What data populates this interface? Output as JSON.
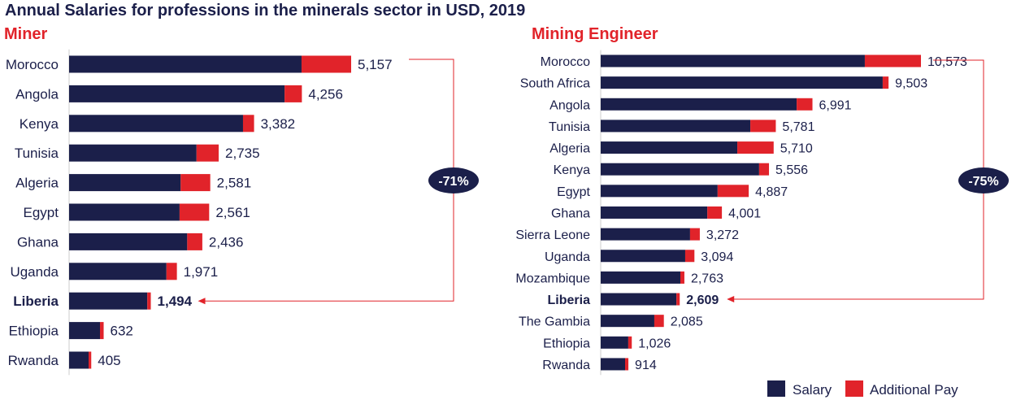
{
  "title": "Annual Salaries for professions in the minerals sector in USD, 2019",
  "colors": {
    "salary": "#1b1f4a",
    "additional": "#e1232a",
    "axis": "#cccccc"
  },
  "legend": [
    "Salary",
    "Additional Pay"
  ],
  "chart_data": [
    {
      "type": "bar",
      "orientation": "horizontal",
      "stacked": true,
      "title": "Miner",
      "categories": [
        "Morocco",
        "Angola",
        "Kenya",
        "Tunisia",
        "Algeria",
        "Egypt",
        "Ghana",
        "Uganda",
        "Liberia",
        "Ethiopia",
        "Rwanda"
      ],
      "highlight": "Liberia",
      "totals": [
        5157,
        4256,
        3382,
        2735,
        2581,
        2561,
        2436,
        1971,
        1494,
        632,
        405
      ],
      "total_labels": [
        "5,157",
        "4,256",
        "3,382",
        "2,735",
        "2,581",
        "2,561",
        "2,436",
        "1,971",
        "1,494",
        "632",
        "405"
      ],
      "series": [
        {
          "name": "Salary",
          "values": [
            4250,
            3940,
            3180,
            2330,
            2040,
            2020,
            2160,
            1780,
            1430,
            565,
            357
          ]
        },
        {
          "name": "Additional Pay",
          "values": [
            907,
            316,
            202,
            405,
            541,
            541,
            276,
            191,
            64,
            67,
            48
          ]
        }
      ],
      "annotation": "-71%",
      "legend_position": "bottom-right"
    },
    {
      "type": "bar",
      "orientation": "horizontal",
      "stacked": true,
      "title": "Mining Engineer",
      "categories": [
        "Morocco",
        "South Africa",
        "Angola",
        "Tunisia",
        "Algeria",
        "Kenya",
        "Egypt",
        "Ghana",
        "Sierra Leone",
        "Uganda",
        "Mozambique",
        "Liberia",
        "The Gambia",
        "Ethiopia",
        "Rwanda"
      ],
      "highlight": "Liberia",
      "totals": [
        10573,
        9503,
        6991,
        5781,
        5710,
        5556,
        4887,
        4001,
        3272,
        3094,
        2763,
        2609,
        2085,
        1026,
        914
      ],
      "total_labels": [
        "10,573",
        "9,503",
        "6,991",
        "5,781",
        "5,710",
        "5,556",
        "4,887",
        "4,001",
        "3,272",
        "3,094",
        "2,763",
        "2,609",
        "2,085",
        "1,026",
        "914"
      ],
      "series": [
        {
          "name": "Salary",
          "values": [
            8720,
            9310,
            6470,
            4940,
            4510,
            5230,
            3860,
            3520,
            2950,
            2790,
            2630,
            2500,
            1770,
            910,
            805
          ]
        },
        {
          "name": "Additional Pay",
          "values": [
            1853,
            193,
            521,
            841,
            1200,
            326,
            1027,
            481,
            322,
            304,
            133,
            109,
            315,
            116,
            109
          ]
        }
      ],
      "annotation": "-75%",
      "legend_position": "bottom-right"
    }
  ]
}
